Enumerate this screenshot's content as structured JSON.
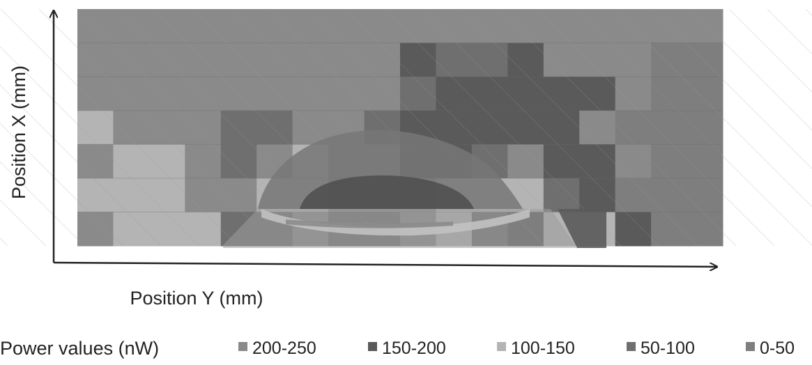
{
  "chart_data": {
    "type": "heatmap",
    "title": "",
    "xlabel": "Position Y (mm)",
    "ylabel": "Position X (mm)",
    "legend": {
      "title": "Power values (nW)",
      "placement": "bottom",
      "entries": [
        {
          "label": "200-250",
          "color": "#8a8a8a"
        },
        {
          "label": "150-200",
          "color": "#5a5a5a"
        },
        {
          "label": "100-150",
          "color": "#b4b4b4"
        },
        {
          "label": "50-100",
          "color": "#6f6f6f"
        },
        {
          "label": "0-50",
          "color": "#7e7e7e"
        }
      ]
    },
    "grid": true,
    "cells": [
      [
        0,
        0,
        0,
        0,
        0,
        0,
        0,
        0,
        0,
        0,
        0,
        0,
        0,
        0,
        0,
        0,
        0,
        0
      ],
      [
        0,
        0,
        0,
        0,
        0,
        0,
        0,
        0,
        0,
        1,
        3,
        3,
        1,
        0,
        0,
        0,
        4,
        4
      ],
      [
        0,
        0,
        0,
        0,
        0,
        0,
        0,
        0,
        0,
        3,
        1,
        1,
        1,
        1,
        1,
        0,
        4,
        4
      ],
      [
        2,
        0,
        0,
        0,
        3,
        3,
        0,
        0,
        3,
        1,
        1,
        1,
        1,
        1,
        0,
        4,
        4,
        4
      ],
      [
        0,
        2,
        2,
        0,
        3,
        0,
        2,
        0,
        0,
        1,
        1,
        3,
        0,
        1,
        1,
        0,
        4,
        4
      ],
      [
        2,
        2,
        2,
        0,
        0,
        2,
        2,
        0,
        0,
        0,
        2,
        2,
        2,
        3,
        1,
        4,
        4,
        4
      ],
      [
        0,
        2,
        2,
        2,
        3,
        3,
        0,
        3,
        3,
        0,
        2,
        3,
        1,
        2,
        2,
        1,
        4,
        4
      ]
    ]
  }
}
